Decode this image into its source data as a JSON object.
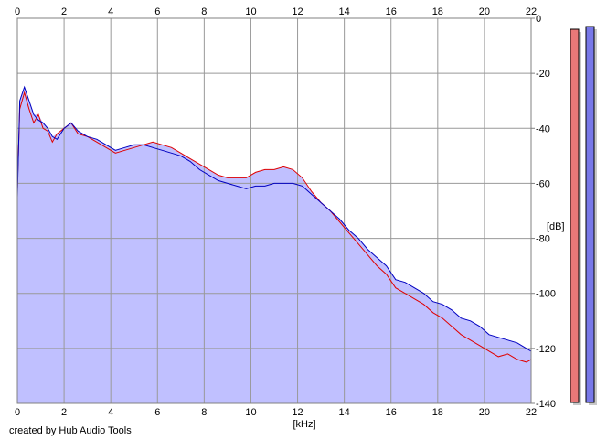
{
  "chart_data": {
    "type": "area",
    "title": "",
    "xlabel": "[kHz]",
    "ylabel": "[dB]",
    "xlim": [
      0,
      22
    ],
    "ylim": [
      -140,
      0
    ],
    "x_ticks": [
      0,
      2,
      4,
      6,
      8,
      10,
      12,
      14,
      16,
      18,
      20,
      22
    ],
    "y_ticks": [
      0,
      -20,
      -40,
      -60,
      -80,
      -100,
      -120,
      -140
    ],
    "x_tick_labels": [
      "0",
      "2",
      "4",
      "6",
      "8",
      "10",
      "12",
      "14",
      "16",
      "18",
      "20",
      "22"
    ],
    "y_tick_labels": [
      "0",
      "-20",
      "-40",
      "-60",
      "-80",
      "-100",
      "-120",
      "-140"
    ],
    "grid": true,
    "fill_color": "#c0c0ff",
    "series": [
      {
        "color": "#e00000",
        "x": [
          0,
          0.1,
          0.3,
          0.5,
          0.7,
          0.9,
          1.1,
          1.3,
          1.5,
          1.7,
          2.0,
          2.3,
          2.6,
          3.0,
          3.4,
          3.8,
          4.2,
          4.6,
          5.0,
          5.4,
          5.8,
          6.2,
          6.6,
          7.0,
          7.4,
          7.8,
          8.2,
          8.6,
          9.0,
          9.4,
          9.8,
          10.2,
          10.6,
          11.0,
          11.4,
          11.8,
          12.2,
          12.6,
          13.0,
          13.4,
          13.8,
          14.2,
          14.6,
          15.0,
          15.4,
          15.8,
          16.2,
          16.6,
          17.0,
          17.4,
          17.8,
          18.2,
          18.6,
          19.0,
          19.4,
          19.8,
          20.2,
          20.6,
          21.0,
          21.4,
          21.8,
          22.0
        ],
        "y": [
          -62,
          -33,
          -27,
          -33,
          -38,
          -35,
          -40,
          -41,
          -45,
          -42,
          -40,
          -38,
          -42,
          -43,
          -45,
          -47,
          -49,
          -48,
          -47,
          -46,
          -45,
          -46,
          -47,
          -49,
          -51,
          -53,
          -55,
          -57,
          -58,
          -58,
          -58,
          -56,
          -55,
          -55,
          -54,
          -55,
          -58,
          -63,
          -67,
          -70,
          -74,
          -78,
          -82,
          -86,
          -90,
          -93,
          -98,
          -100,
          -102,
          -104,
          -107,
          -109,
          -112,
          -115,
          -117,
          -119,
          -121,
          -123,
          -122,
          -124,
          -125,
          -124
        ]
      },
      {
        "color": "#0000c0",
        "x": [
          0,
          0.1,
          0.3,
          0.5,
          0.7,
          0.9,
          1.1,
          1.3,
          1.5,
          1.7,
          2.0,
          2.3,
          2.6,
          3.0,
          3.4,
          3.8,
          4.2,
          4.6,
          5.0,
          5.4,
          5.8,
          6.2,
          6.6,
          7.0,
          7.4,
          7.8,
          8.2,
          8.6,
          9.0,
          9.4,
          9.8,
          10.2,
          10.6,
          11.0,
          11.4,
          11.8,
          12.2,
          12.6,
          13.0,
          13.4,
          13.8,
          14.2,
          14.6,
          15.0,
          15.4,
          15.8,
          16.2,
          16.6,
          17.0,
          17.4,
          17.8,
          18.2,
          18.6,
          19.0,
          19.4,
          19.8,
          20.2,
          20.6,
          21.0,
          21.4,
          21.8,
          22.0
        ],
        "y": [
          -65,
          -30,
          -25,
          -30,
          -35,
          -37,
          -38,
          -40,
          -43,
          -44,
          -40,
          -38,
          -41,
          -43,
          -44,
          -46,
          -48,
          -47,
          -46,
          -46,
          -47,
          -48,
          -49,
          -50,
          -52,
          -55,
          -57,
          -59,
          -60,
          -61,
          -62,
          -61,
          -61,
          -60,
          -60,
          -60,
          -61,
          -64,
          -67,
          -70,
          -73,
          -77,
          -80,
          -84,
          -87,
          -90,
          -95,
          -96,
          -98,
          -100,
          -103,
          -104,
          -106,
          -109,
          -110,
          -112,
          -115,
          -116,
          -117,
          -118,
          -120,
          -121
        ]
      }
    ],
    "level_meters": [
      {
        "color": "#e87878",
        "value_db": -3
      },
      {
        "color": "#7878e8",
        "value_db": -2
      }
    ]
  },
  "credit": "created by Hub Audio Tools"
}
